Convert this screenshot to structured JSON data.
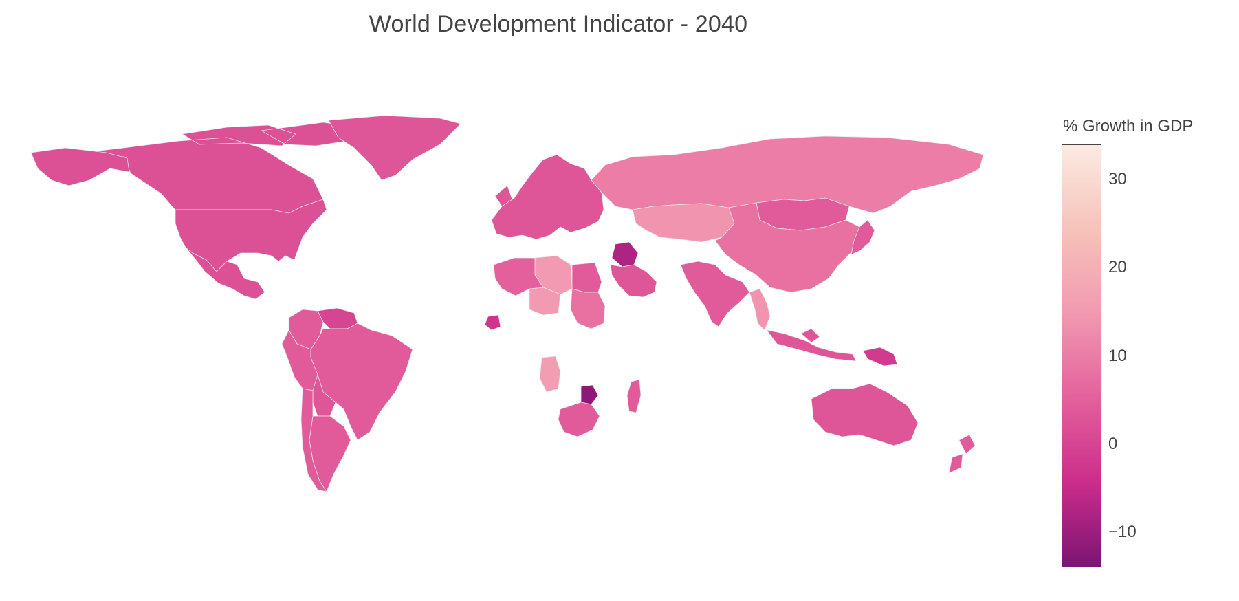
{
  "title": "World Development Indicator - 2040",
  "colorbar": {
    "title": "% Growth in GDP",
    "min": -14,
    "max": 34,
    "ticks": [
      "30",
      "20",
      "10",
      "0",
      "−10"
    ],
    "tick_values": [
      30,
      20,
      10,
      0,
      -10
    ],
    "colors": [
      "#fbeae3",
      "#f6c3b9",
      "#f199b1",
      "#e4619c",
      "#cb2d8a",
      "#7c1473"
    ]
  },
  "chart_data": {
    "type": "choropleth",
    "title": "World Development Indicator - 2040",
    "colorbar_title": "% Growth in GDP",
    "color_range": [
      -14,
      34
    ],
    "regions": [
      {
        "name": "Canada",
        "value": 2
      },
      {
        "name": "Alaska (United States)",
        "value": 2
      },
      {
        "name": "United States",
        "value": 2
      },
      {
        "name": "Mexico",
        "value": 2
      },
      {
        "name": "Greenland",
        "value": 3
      },
      {
        "name": "Colombia",
        "value": 4
      },
      {
        "name": "Venezuela",
        "value": 0
      },
      {
        "name": "Brazil",
        "value": 4
      },
      {
        "name": "Peru",
        "value": 4
      },
      {
        "name": "Bolivia",
        "value": 3
      },
      {
        "name": "Argentina",
        "value": 4
      },
      {
        "name": "Chile",
        "value": 4
      },
      {
        "name": "Europe",
        "value": 3
      },
      {
        "name": "Russia",
        "value": 10
      },
      {
        "name": "Kazakhstan",
        "value": 14
      },
      {
        "name": "Mongolia",
        "value": 4
      },
      {
        "name": "China",
        "value": 8
      },
      {
        "name": "India",
        "value": 4
      },
      {
        "name": "Myanmar",
        "value": 14
      },
      {
        "name": "Iraq",
        "value": -8
      },
      {
        "name": "Saudi Arabia",
        "value": 3
      },
      {
        "name": "Libya",
        "value": 15
      },
      {
        "name": "Egypt",
        "value": 4
      },
      {
        "name": "Niger",
        "value": 15
      },
      {
        "name": "Sudan",
        "value": 8
      },
      {
        "name": "Algeria",
        "value": 5
      },
      {
        "name": "Angola",
        "value": 16
      },
      {
        "name": "Zimbabwe",
        "value": -12
      },
      {
        "name": "Cote d'Ivoire",
        "value": -3
      },
      {
        "name": "Madagascar",
        "value": 4
      },
      {
        "name": "South Africa",
        "value": 4
      },
      {
        "name": "Australia",
        "value": 3
      },
      {
        "name": "Indonesia",
        "value": 3
      },
      {
        "name": "Papua New Guinea",
        "value": -2
      },
      {
        "name": "Japan",
        "value": 4
      },
      {
        "name": "New Zealand",
        "value": 4
      }
    ]
  }
}
